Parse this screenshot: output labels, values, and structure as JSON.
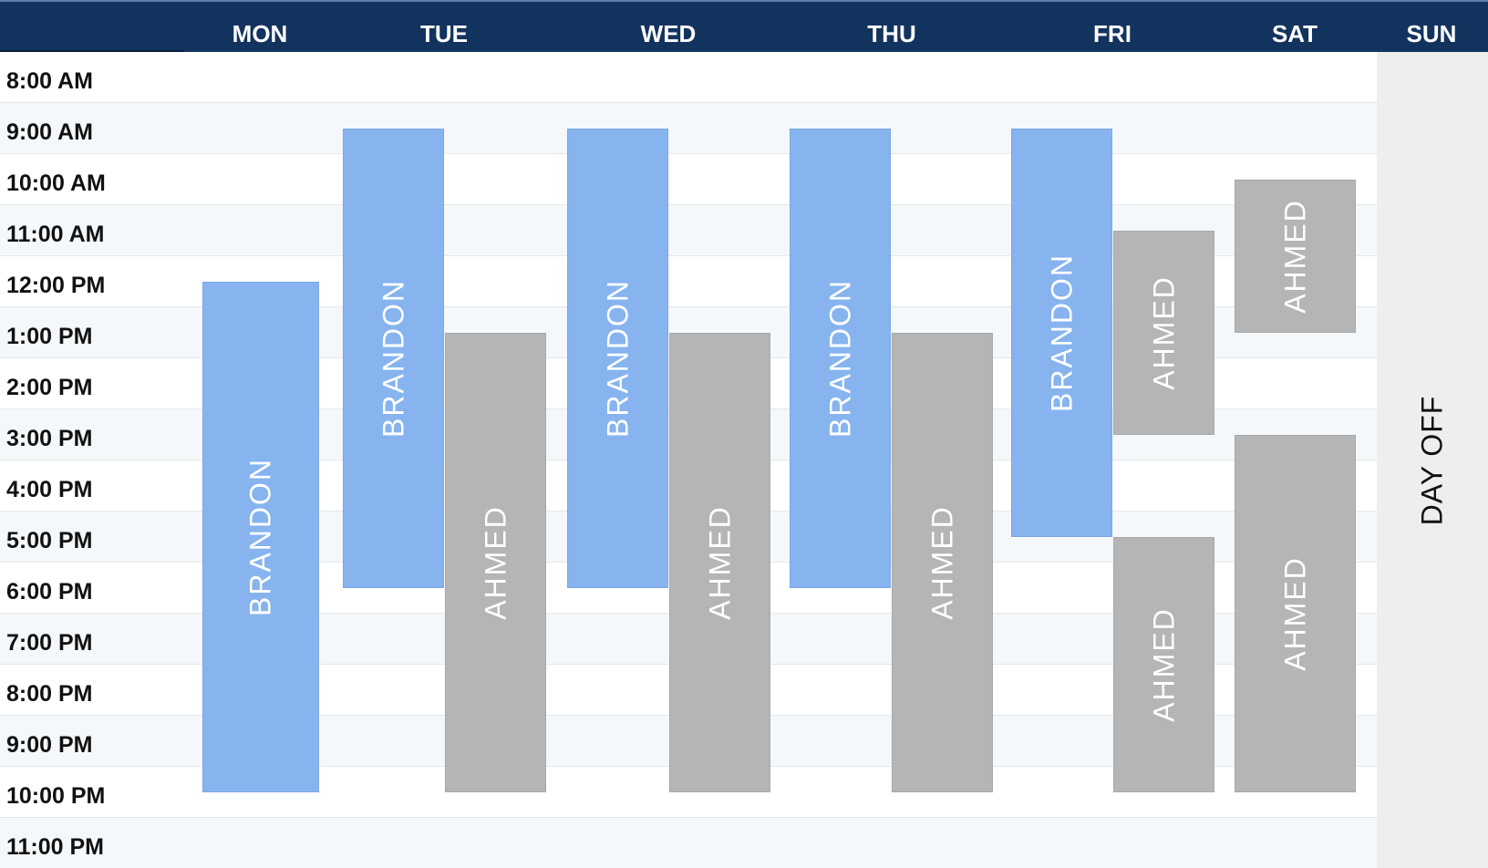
{
  "schedule": {
    "days": [
      "MON",
      "TUE",
      "WED",
      "THU",
      "FRI",
      "SAT",
      "SUN"
    ],
    "hours": [
      "8:00 AM",
      "9:00 AM",
      "10:00 AM",
      "11:00 AM",
      "12:00 PM",
      "1:00 PM",
      "2:00 PM",
      "3:00 PM",
      "4:00 PM",
      "5:00 PM",
      "6:00 PM",
      "7:00 PM",
      "8:00 PM",
      "9:00 PM",
      "10:00 PM",
      "11:00 PM"
    ],
    "sunday_status": "DAY OFF",
    "colors": {
      "header": "#13335f",
      "brandon": "#87b4ef",
      "ahmed": "#b5b5b5",
      "day_off_panel": "#eeeeee"
    },
    "shifts": [
      {
        "day": "MON",
        "person": "BRANDON",
        "start": "12:30 PM",
        "end": "10:30 PM"
      },
      {
        "day": "TUE",
        "person": "BRANDON",
        "start": "9:30 AM",
        "end": "6:30 PM"
      },
      {
        "day": "TUE",
        "person": "AHMED",
        "start": "1:30 PM",
        "end": "10:30 PM"
      },
      {
        "day": "WED",
        "person": "BRANDON",
        "start": "9:30 AM",
        "end": "6:30 PM"
      },
      {
        "day": "WED",
        "person": "AHMED",
        "start": "1:30 PM",
        "end": "10:30 PM"
      },
      {
        "day": "THU",
        "person": "BRANDON",
        "start": "9:30 AM",
        "end": "6:30 PM"
      },
      {
        "day": "THU",
        "person": "AHMED",
        "start": "1:30 PM",
        "end": "10:30 PM"
      },
      {
        "day": "FRI",
        "person": "BRANDON",
        "start": "9:30 AM",
        "end": "5:30 PM"
      },
      {
        "day": "FRI",
        "person": "AHMED",
        "start": "11:30 AM",
        "end": "3:30 PM"
      },
      {
        "day": "FRI",
        "person": "AHMED",
        "start": "5:30 PM",
        "end": "10:30 PM"
      },
      {
        "day": "SAT",
        "person": "AHMED",
        "start": "10:30 AM",
        "end": "1:30 PM"
      },
      {
        "day": "SAT",
        "person": "AHMED",
        "start": "3:30 PM",
        "end": "10:30 PM"
      }
    ]
  }
}
